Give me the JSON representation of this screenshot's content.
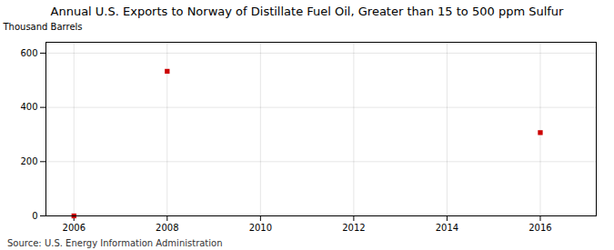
{
  "chart_data": {
    "type": "scatter",
    "title": "Annual U.S. Exports to Norway of Distillate Fuel Oil, Greater than 15 to 500 ppm Sulfur",
    "ylabel": "Thousand Barrels",
    "source": "Source: U.S. Energy Information Administration",
    "x": [
      2006,
      2008,
      2016
    ],
    "values": [
      0,
      533,
      307
    ],
    "color": "#cc0000",
    "marker": "square",
    "xlim": [
      2005.4,
      2017.2
    ],
    "ylim": [
      0,
      640
    ],
    "xticks": [
      2006,
      2008,
      2010,
      2012,
      2014,
      2016
    ],
    "yticks": [
      0,
      200,
      400,
      600
    ],
    "grid": true
  }
}
